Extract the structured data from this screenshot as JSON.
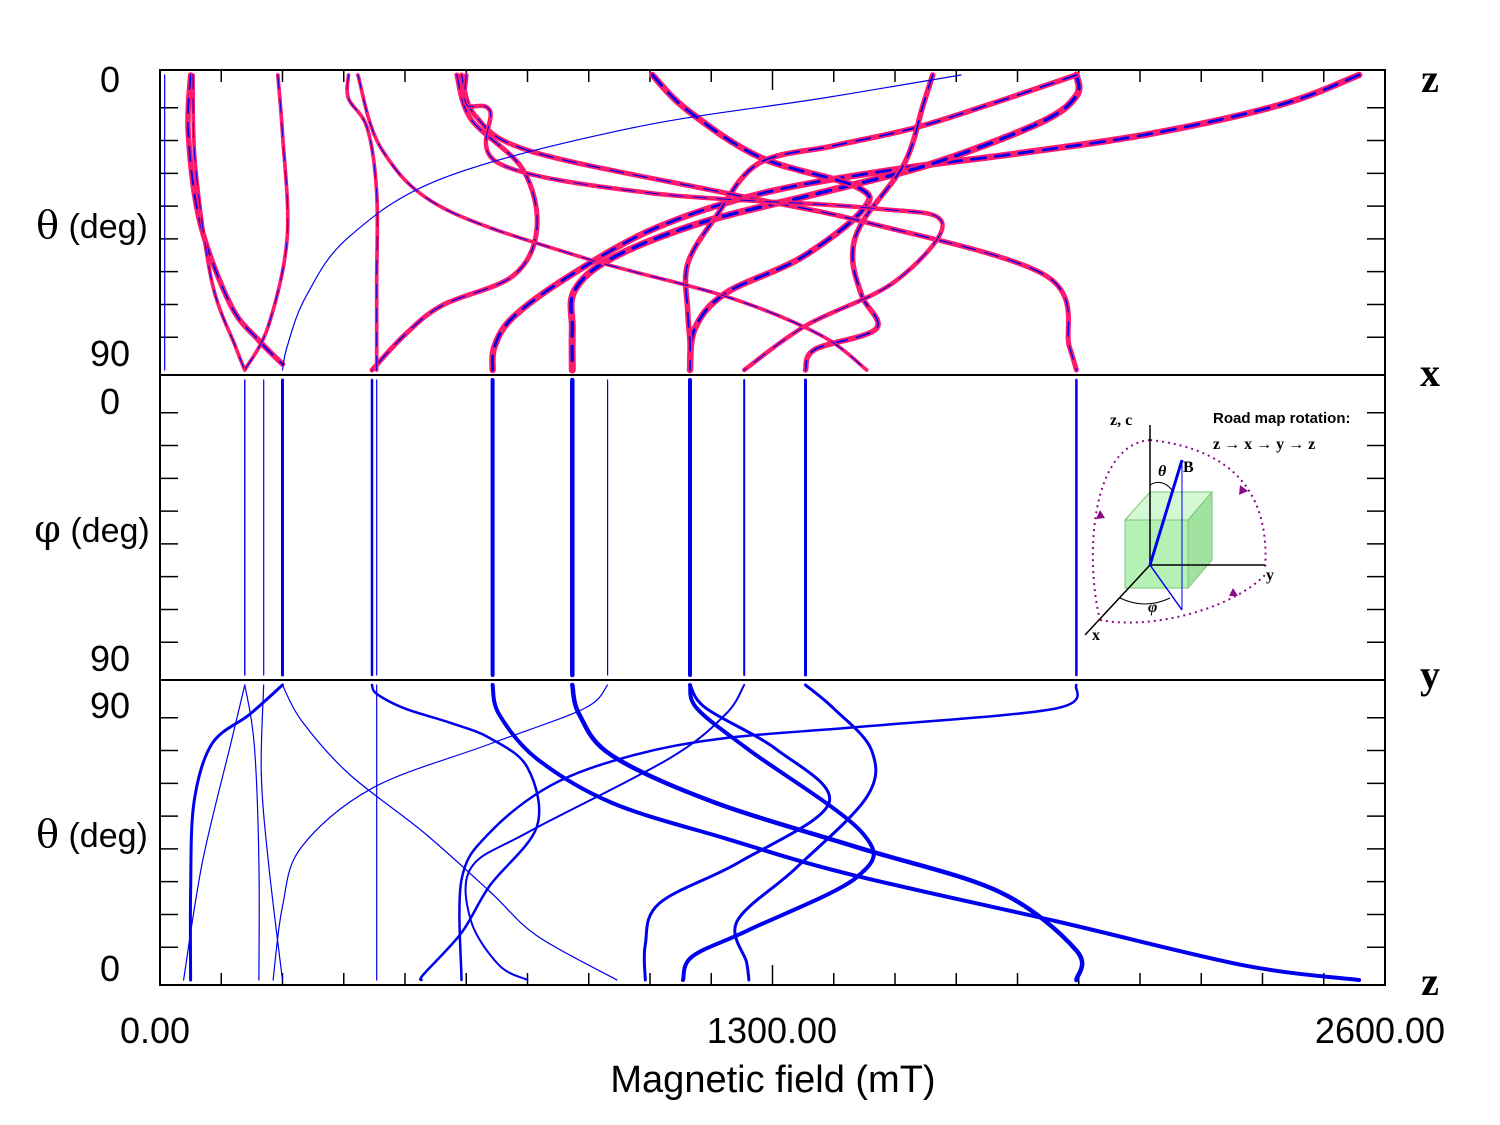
{
  "chart_data": {
    "type": "line",
    "xlabel": "Magnetic field (mT)",
    "xlim": [
      0,
      2600
    ],
    "x_tick_labels": [
      "0.00",
      "1300.00",
      "2600.00"
    ],
    "panels": [
      {
        "name": "z-x",
        "ylabel_symbol": "θ",
        "ylabel_unit": "(deg)",
        "top_tick": "0",
        "bottom_tick": "90",
        "from": "z",
        "to": "x"
      },
      {
        "name": "x-y",
        "ylabel_symbol": "φ",
        "ylabel_unit": "(deg)",
        "top_tick": "0",
        "bottom_tick": "90",
        "from": "x",
        "to": "y"
      },
      {
        "name": "y-z",
        "ylabel_symbol": "θ",
        "ylabel_unit": "(deg)",
        "top_tick": "90",
        "bottom_tick": "0",
        "from": "y",
        "to": "z"
      }
    ],
    "direction_labels": [
      "z",
      "x",
      "y",
      "z"
    ],
    "colors": {
      "calc": "#0000ee",
      "exp": "#ff1a6e",
      "axes": "#000000"
    },
    "series": [
      {
        "id": "A",
        "w": 4,
        "pink": true,
        "zx": [
          [
            2545,
            0
          ],
          [
            2380,
            10
          ],
          [
            2100,
            20
          ],
          [
            1800,
            27
          ],
          [
            1560,
            32
          ],
          [
            1280,
            40
          ],
          [
            1050,
            52
          ],
          [
            870,
            68
          ],
          [
            750,
            82
          ],
          [
            710,
            92
          ],
          [
            706,
            100
          ]
        ],
        "xy": [
          [
            706,
            0
          ],
          [
            706,
            100
          ]
        ],
        "yz": [
          [
            706,
            0
          ],
          [
            720,
            10
          ],
          [
            800,
            25
          ],
          [
            960,
            40
          ],
          [
            1200,
            52
          ],
          [
            1460,
            64
          ],
          [
            1900,
            80
          ],
          [
            2300,
            95
          ],
          [
            2545,
            100
          ]
        ]
      },
      {
        "id": "B",
        "w": 4.5,
        "pink": true,
        "zx": [
          [
            1945,
            0
          ],
          [
            1945,
            7
          ],
          [
            1870,
            16
          ],
          [
            1640,
            30
          ],
          [
            1400,
            40
          ],
          [
            1150,
            50
          ],
          [
            960,
            62
          ],
          [
            880,
            73
          ],
          [
            875,
            86
          ],
          [
            875,
            100
          ]
        ],
        "xy": [
          [
            875,
            0
          ],
          [
            875,
            100
          ]
        ],
        "yz": [
          [
            875,
            0
          ],
          [
            890,
            10
          ],
          [
            960,
            24
          ],
          [
            1180,
            40
          ],
          [
            1480,
            55
          ],
          [
            1780,
            70
          ],
          [
            1945,
            90
          ],
          [
            1945,
            100
          ]
        ]
      },
      {
        "id": "C",
        "w": 4,
        "pink": true,
        "zx": [
          [
            1045,
            0
          ],
          [
            1120,
            12
          ],
          [
            1275,
            28
          ],
          [
            1480,
            38
          ],
          [
            1490,
            46
          ],
          [
            1360,
            62
          ],
          [
            1200,
            74
          ],
          [
            1135,
            86
          ],
          [
            1125,
            100
          ]
        ],
        "xy": [
          [
            1125,
            0
          ],
          [
            1125,
            100
          ]
        ],
        "yz": [
          [
            1125,
            0
          ],
          [
            1140,
            8
          ],
          [
            1250,
            22
          ],
          [
            1490,
            50
          ],
          [
            1480,
            65
          ],
          [
            1250,
            83
          ],
          [
            1130,
            92
          ],
          [
            1110,
            100
          ]
        ]
      },
      {
        "id": "D",
        "w": 3,
        "pink": true,
        "zx": [
          [
            1945,
            0
          ],
          [
            1760,
            10
          ],
          [
            1600,
            18
          ],
          [
            1430,
            24
          ],
          [
            1270,
            30
          ],
          [
            1180,
            48
          ],
          [
            1120,
            64
          ],
          [
            1120,
            80
          ],
          [
            1125,
            91
          ],
          [
            1125,
            100
          ]
        ],
        "xy": [
          [
            1125,
            0
          ],
          [
            1125,
            100
          ]
        ],
        "yz": [
          [
            1125,
            0
          ],
          [
            1160,
            8
          ],
          [
            1310,
            22
          ],
          [
            1420,
            40
          ],
          [
            1230,
            60
          ],
          [
            1060,
            74
          ],
          [
            1030,
            88
          ],
          [
            1030,
            100
          ]
        ]
      },
      {
        "id": "E",
        "w": 3,
        "pink": true,
        "zx": [
          [
            1640,
            0
          ],
          [
            1620,
            10
          ],
          [
            1580,
            30
          ],
          [
            1490,
            50
          ],
          [
            1470,
            62
          ],
          [
            1490,
            75
          ],
          [
            1520,
            86
          ],
          [
            1390,
            93
          ],
          [
            1370,
            100
          ]
        ],
        "xy": [
          [
            1370,
            0
          ],
          [
            1370,
            100
          ]
        ],
        "yz": [
          [
            1370,
            0
          ],
          [
            1430,
            8
          ],
          [
            1510,
            22
          ],
          [
            1500,
            38
          ],
          [
            1350,
            62
          ],
          [
            1225,
            80
          ],
          [
            1245,
            94
          ],
          [
            1250,
            100
          ]
        ]
      },
      {
        "id": "F",
        "w": 2.5,
        "pink": true,
        "zx": [
          [
            640,
            0
          ],
          [
            670,
            14
          ],
          [
            790,
            26
          ],
          [
            1200,
            40
          ],
          [
            1500,
            50
          ],
          [
            1880,
            68
          ],
          [
            1930,
            92
          ],
          [
            1945,
            100
          ]
        ],
        "xy": [
          [
            1945,
            0
          ],
          [
            1945,
            100
          ]
        ],
        "yz": [
          [
            1945,
            0
          ],
          [
            1900,
            8
          ],
          [
            1500,
            14
          ],
          [
            1200,
            18
          ],
          [
            1000,
            24
          ],
          [
            830,
            34
          ],
          [
            700,
            50
          ],
          [
            640,
            66
          ],
          [
            640,
            100
          ]
        ]
      },
      {
        "id": "G",
        "w": 2.5,
        "pink": true,
        "zx": [
          [
            630,
            0
          ],
          [
            660,
            15
          ],
          [
            770,
            32
          ],
          [
            800,
            52
          ],
          [
            750,
            68
          ],
          [
            600,
            78
          ],
          [
            520,
            88
          ],
          [
            450,
            100
          ]
        ],
        "xy": [
          [
            450,
            0
          ],
          [
            450,
            100
          ]
        ],
        "yz": [
          [
            450,
            0
          ],
          [
            460,
            3
          ],
          [
            520,
            8
          ],
          [
            620,
            13
          ],
          [
            700,
            18
          ],
          [
            780,
            28
          ],
          [
            800,
            48
          ],
          [
            700,
            68
          ],
          [
            640,
            84
          ],
          [
            560,
            98
          ],
          [
            555,
            100
          ]
        ]
      },
      {
        "id": "H",
        "w": 2,
        "pink": true,
        "zx": [
          [
            650,
            0
          ],
          [
            650,
            10
          ],
          [
            700,
            12
          ],
          [
            720,
            30
          ],
          [
            1040,
            40
          ],
          [
            1500,
            45
          ],
          [
            1660,
            50
          ],
          [
            1560,
            70
          ],
          [
            1370,
            85
          ],
          [
            1240,
            100
          ]
        ],
        "xy": [
          [
            1240,
            0
          ],
          [
            1240,
            100
          ]
        ],
        "yz": [
          [
            1240,
            0
          ],
          [
            1200,
            10
          ],
          [
            1080,
            25
          ],
          [
            780,
            50
          ],
          [
            660,
            62
          ],
          [
            660,
            80
          ],
          [
            720,
            95
          ],
          [
            780,
            100
          ]
        ]
      },
      {
        "id": "I",
        "w": 3,
        "pink": true,
        "zx": [
          [
            65,
            0
          ],
          [
            60,
            20
          ],
          [
            85,
            50
          ],
          [
            150,
            78
          ],
          [
            210,
            90
          ],
          [
            260,
            98
          ]
        ],
        "xy": [
          [
            260,
            0
          ],
          [
            260,
            100
          ]
        ],
        "yz": [
          [
            260,
            0
          ],
          [
            190,
            10
          ],
          [
            110,
            20
          ],
          [
            72,
            40
          ],
          [
            65,
            70
          ],
          [
            65,
            100
          ]
        ]
      },
      {
        "id": "J",
        "w": 1.2,
        "pink": true,
        "zx": [
          [
            70,
            0
          ],
          [
            75,
            30
          ],
          [
            110,
            70
          ],
          [
            160,
            92
          ],
          [
            180,
            100
          ]
        ],
        "xy": [
          [
            180,
            0
          ],
          [
            180,
            100
          ]
        ],
        "yz": [
          [
            180,
            0
          ],
          [
            150,
            20
          ],
          [
            90,
            60
          ],
          [
            50,
            100
          ]
        ]
      },
      {
        "id": "K",
        "w": 1.2,
        "pink": true,
        "zx": [
          [
            420,
            0
          ],
          [
            470,
            25
          ],
          [
            600,
            45
          ],
          [
            900,
            62
          ],
          [
            1200,
            75
          ],
          [
            1400,
            88
          ],
          [
            1500,
            100
          ]
        ],
        "xy": [
          [
            950,
            0
          ],
          [
            950,
            100
          ]
        ],
        "yz": [
          [
            950,
            0
          ],
          [
            900,
            8
          ],
          [
            700,
            20
          ],
          [
            450,
            35
          ],
          [
            300,
            55
          ],
          [
            260,
            75
          ],
          [
            240,
            100
          ]
        ]
      },
      {
        "id": "L",
        "w": 1.2,
        "pink": true,
        "zx": [
          [
            250,
            0
          ],
          [
            260,
            20
          ],
          [
            270,
            55
          ],
          [
            230,
            85
          ],
          [
            180,
            100
          ]
        ],
        "xy": [
          [
            180,
            0
          ],
          [
            180,
            100
          ]
        ],
        "yz": [
          [
            180,
            0
          ],
          [
            200,
            20
          ],
          [
            210,
            60
          ],
          [
            210,
            100
          ]
        ]
      },
      {
        "id": "M",
        "w": 1.2,
        "pink": true,
        "zx": [
          [
            400,
            0
          ],
          [
            400,
            8
          ],
          [
            440,
            18
          ],
          [
            460,
            40
          ],
          [
            460,
            70
          ],
          [
            460,
            95
          ],
          [
            460,
            100
          ]
        ],
        "xy": [
          [
            460,
            0
          ],
          [
            460,
            100
          ]
        ],
        "yz": [
          [
            460,
            0
          ],
          [
            460,
            50
          ],
          [
            460,
            100
          ]
        ]
      },
      {
        "id": "N",
        "w": 1.2,
        "pink": false,
        "zx": [
          [
            1700,
            0
          ],
          [
            1400,
            8
          ],
          [
            1000,
            18
          ],
          [
            600,
            35
          ],
          [
            400,
            55
          ],
          [
            310,
            75
          ],
          [
            270,
            92
          ],
          [
            260,
            100
          ]
        ],
        "xy": [
          [
            260,
            0
          ],
          [
            260,
            100
          ]
        ],
        "yz": [
          [
            260,
            0
          ],
          [
            300,
            12
          ],
          [
            400,
            30
          ],
          [
            560,
            50
          ],
          [
            700,
            70
          ],
          [
            800,
            85
          ],
          [
            970,
            100
          ]
        ]
      },
      {
        "id": "O",
        "w": 1.2,
        "pink": false,
        "zx": [
          [
            10,
            0
          ],
          [
            10,
            100
          ]
        ],
        "xy": [
          [
            220,
            0
          ],
          [
            220,
            100
          ]
        ],
        "yz": [
          [
            220,
            0
          ],
          [
            215,
            30
          ],
          [
            230,
            60
          ],
          [
            260,
            100
          ]
        ]
      }
    ]
  }
}
